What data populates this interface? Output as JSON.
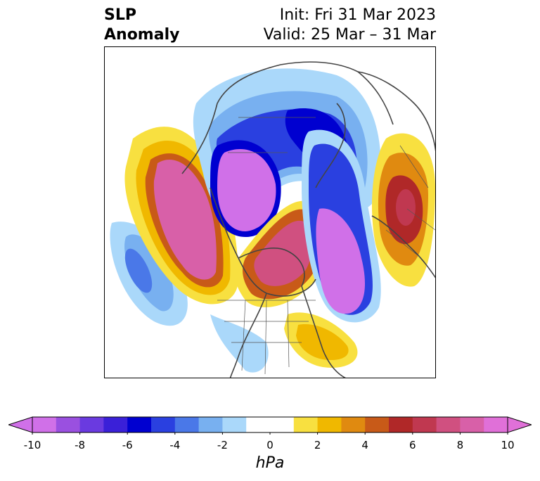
{
  "title": {
    "left_line1": "SLP",
    "left_line2": "Anomaly",
    "right_line1": "Init: Fri 31 Mar 2023",
    "right_line2": "Valid: 25 Mar – 31 Mar"
  },
  "colorbar": {
    "unit": "hPa",
    "tick_labels": [
      "-10",
      "-8",
      "-6",
      "-4",
      "-2",
      "0",
      "2",
      "4",
      "6",
      "8",
      "10"
    ],
    "min": -10,
    "max": 10,
    "extend": "both",
    "colors": [
      "#d070e8",
      "#9a50e0",
      "#6a3ae0",
      "#3a20d8",
      "#0000d0",
      "#2a40e0",
      "#4a78e8",
      "#78b0f0",
      "#aad8fa",
      "#ffffff",
      "#ffffff",
      "#f8e040",
      "#f0b800",
      "#e08a10",
      "#c85a18",
      "#b02828",
      "#c03850",
      "#d05080",
      "#d860a8",
      "#e070d8"
    ]
  },
  "map": {
    "projection": "north polar stereographic",
    "field": "SLP anomaly",
    "features": [
      "coastlines",
      "country borders",
      "US state borders",
      "Canadian province borders"
    ]
  }
}
